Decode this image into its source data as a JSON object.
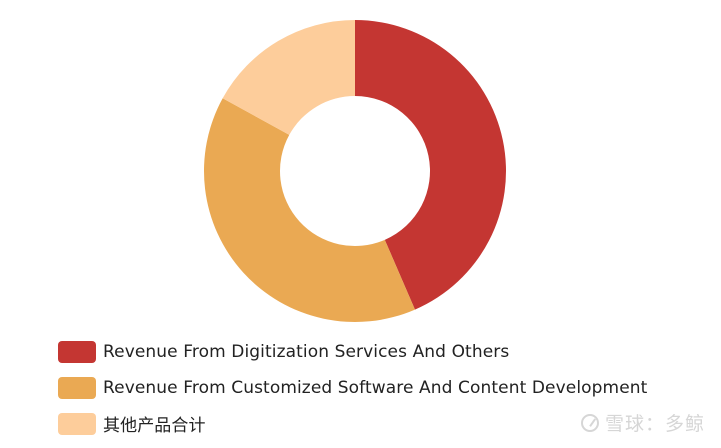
{
  "chart_data": {
    "type": "donut",
    "categories": [
      "Revenue From Digitization Services And Others",
      "Revenue From Customized Software And Content Development",
      "其他产品合计"
    ],
    "values": [
      43.5,
      39.5,
      17.0
    ],
    "colors": [
      "#c43632",
      "#eaa953",
      "#fdcd9b"
    ],
    "legend_position": "bottom-left"
  },
  "watermark": {
    "text": "雪球：多鲸"
  }
}
